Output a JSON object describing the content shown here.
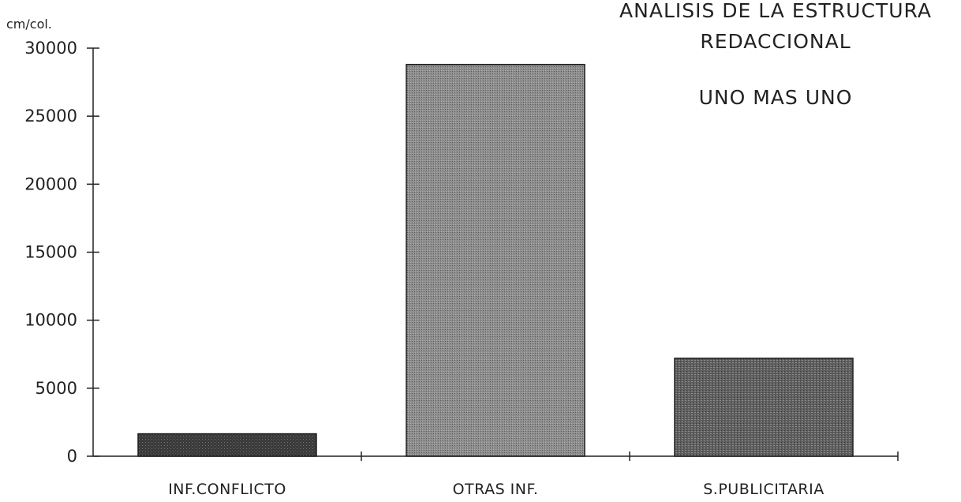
{
  "chart_data": {
    "type": "bar",
    "title": [
      "ANALISIS DE LA ESTRUCTURA",
      "REDACCIONAL",
      "UNO MAS UNO"
    ],
    "ylabel": "cm/col.",
    "xlabel": "",
    "categories": [
      "INF.CONFLICTO",
      "OTRAS INF.",
      "S.PUBLICITARIA"
    ],
    "values": [
      1650,
      28800,
      7200
    ],
    "ylim": [
      0,
      30000
    ],
    "yticks": [
      0,
      5000,
      10000,
      15000,
      20000,
      25000,
      30000
    ],
    "ytick_labels": [
      "0",
      "5000",
      "10000",
      "15000",
      "20000",
      "25000",
      "30000"
    ],
    "grid": false,
    "bar_colors": [
      "#3a3a3a",
      "#8a8a8a",
      "#5c5c5c"
    ]
  }
}
